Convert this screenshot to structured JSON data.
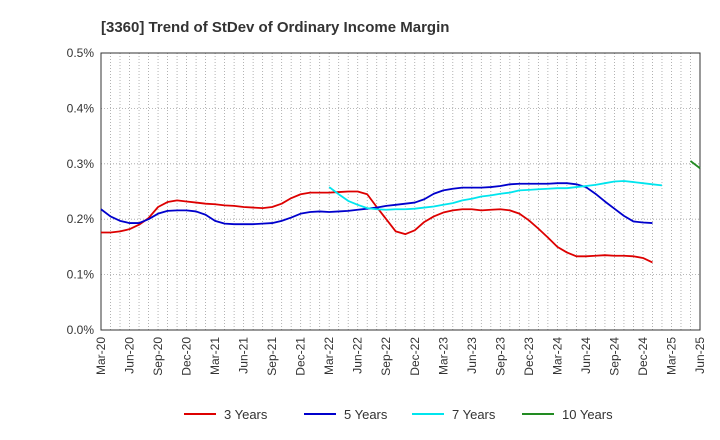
{
  "chart_data": {
    "type": "line",
    "title": "[3360]  Trend of StDev of Ordinary Income Margin",
    "xlabel": "",
    "ylabel": "",
    "ylim": [
      0,
      0.5
    ],
    "yticks": [
      "0.0%",
      "0.1%",
      "0.2%",
      "0.3%",
      "0.4%",
      "0.5%"
    ],
    "ytick_values": [
      0,
      0.1,
      0.2,
      0.3,
      0.4,
      0.5
    ],
    "xticks": [
      "Mar-20",
      "Jun-20",
      "Sep-20",
      "Dec-20",
      "Mar-21",
      "Jun-21",
      "Sep-21",
      "Dec-21",
      "Mar-22",
      "Jun-22",
      "Sep-22",
      "Dec-22",
      "Mar-23",
      "Jun-23",
      "Sep-23",
      "Dec-23",
      "Mar-24",
      "Jun-24",
      "Sep-24",
      "Dec-24",
      "Mar-25",
      "Jun-25"
    ],
    "x_count": 64,
    "grid": true,
    "legend_position": "bottom",
    "series": [
      {
        "name": "3 Years",
        "color": "#dd0000",
        "start_index": 0,
        "values": [
          0.176,
          0.176,
          0.178,
          0.182,
          0.19,
          0.202,
          0.222,
          0.231,
          0.234,
          0.232,
          0.23,
          0.228,
          0.227,
          0.225,
          0.224,
          0.222,
          0.221,
          0.22,
          0.222,
          0.228,
          0.238,
          0.245,
          0.248,
          0.248,
          0.248,
          0.249,
          0.25,
          0.25,
          0.245,
          0.222,
          0.2,
          0.178,
          0.173,
          0.18,
          0.195,
          0.205,
          0.212,
          0.216,
          0.218,
          0.218,
          0.216,
          0.217,
          0.218,
          0.216,
          0.21,
          0.198,
          0.183,
          0.167,
          0.15,
          0.14,
          0.133,
          0.133,
          0.134,
          0.135,
          0.134,
          0.134,
          0.133,
          0.13,
          0.122
        ]
      },
      {
        "name": "5 Years",
        "color": "#0000cc",
        "start_index": 0,
        "values": [
          0.218,
          0.205,
          0.197,
          0.193,
          0.193,
          0.2,
          0.21,
          0.215,
          0.216,
          0.216,
          0.214,
          0.208,
          0.197,
          0.192,
          0.191,
          0.191,
          0.191,
          0.192,
          0.193,
          0.197,
          0.203,
          0.21,
          0.213,
          0.214,
          0.213,
          0.214,
          0.215,
          0.217,
          0.219,
          0.221,
          0.224,
          0.226,
          0.228,
          0.23,
          0.236,
          0.246,
          0.252,
          0.255,
          0.257,
          0.257,
          0.257,
          0.258,
          0.26,
          0.263,
          0.264,
          0.264,
          0.264,
          0.264,
          0.265,
          0.265,
          0.263,
          0.258,
          0.246,
          0.232,
          0.219,
          0.206,
          0.196,
          0.194,
          0.193
        ]
      },
      {
        "name": "7 Years",
        "color": "#00e5ee",
        "start_index": 24,
        "values": [
          0.258,
          0.245,
          0.233,
          0.226,
          0.22,
          0.218,
          0.217,
          0.218,
          0.218,
          0.219,
          0.221,
          0.223,
          0.226,
          0.229,
          0.234,
          0.237,
          0.241,
          0.243,
          0.246,
          0.248,
          0.252,
          0.253,
          0.254,
          0.255,
          0.256,
          0.256,
          0.258,
          0.26,
          0.262,
          0.265,
          0.268,
          0.269,
          0.267,
          0.265,
          0.263,
          0.261
        ]
      },
      {
        "name": "10 Years",
        "color": "#228b22",
        "start_index": 62,
        "values": [
          0.305,
          0.292
        ]
      }
    ]
  }
}
